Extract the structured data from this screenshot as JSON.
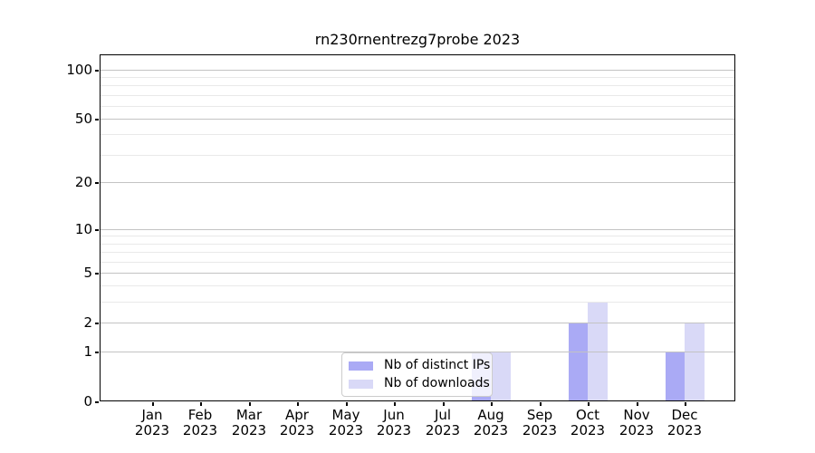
{
  "chart_data": {
    "type": "bar",
    "title": "rn230rnentrezg7probe 2023",
    "categories": [
      "Jan",
      "Feb",
      "Mar",
      "Apr",
      "May",
      "Jun",
      "Jul",
      "Aug",
      "Sep",
      "Oct",
      "Nov",
      "Dec"
    ],
    "category_sublabel": "2023",
    "series": [
      {
        "name": "Nb of distinct IPs",
        "color": "#aaaaf5",
        "values": [
          0,
          0,
          0,
          0,
          0,
          0,
          0,
          1,
          0,
          2,
          0,
          1
        ]
      },
      {
        "name": "Nb of downloads",
        "color": "#d9d9f7",
        "values": [
          0,
          0,
          0,
          0,
          0,
          0,
          0,
          1,
          0,
          3,
          0,
          2
        ]
      }
    ],
    "yscale": "log1p",
    "ylim": [
      0,
      124
    ],
    "y_major_ticks": [
      0,
      1,
      2,
      5,
      10,
      20,
      50,
      100
    ],
    "y_minor_ticks": [
      3,
      4,
      6,
      7,
      8,
      9,
      30,
      40,
      60,
      70,
      80,
      90
    ],
    "grid": true,
    "grid_major_color": "#c3c3c3",
    "grid_minor_color": "#e9e9e9",
    "legend_position": "lower-center-inside"
  }
}
